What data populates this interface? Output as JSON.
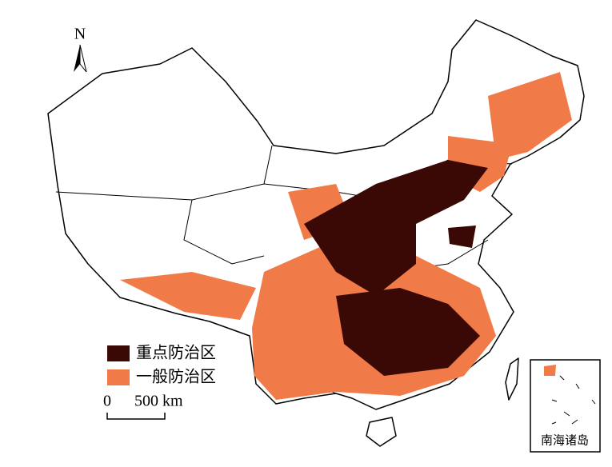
{
  "map": {
    "north_label": "N",
    "legend": [
      {
        "label": "重点防治区",
        "color": "#3a0905"
      },
      {
        "label": "一般防治区",
        "color": "#f07a48"
      }
    ],
    "scale": {
      "start": "0",
      "end": "500 km"
    },
    "inset_label": "南海诸岛"
  }
}
